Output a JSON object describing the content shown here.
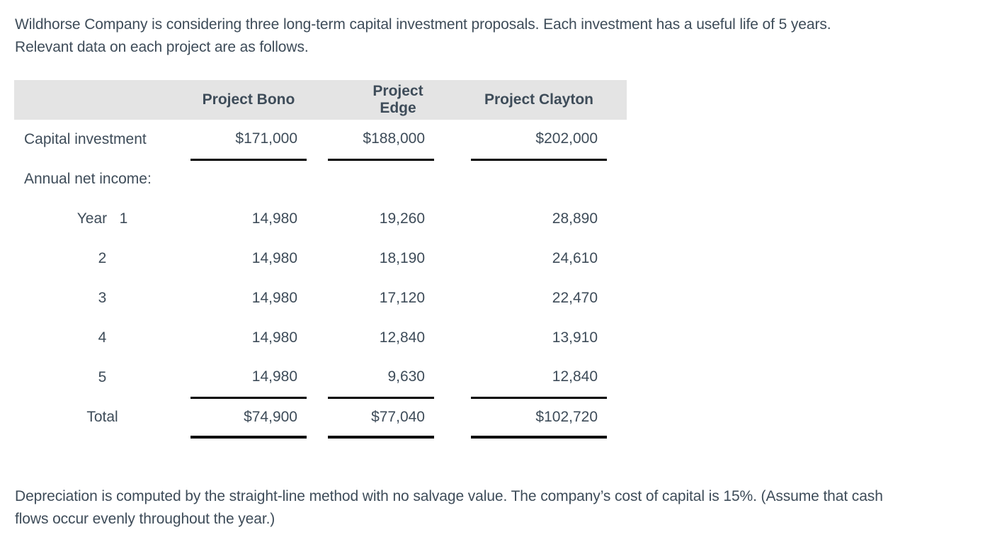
{
  "colors": {
    "text": "#3E4C59",
    "header_bg": "#E4E4E4",
    "rule": "#000000"
  },
  "intro": {
    "lines": [
      "Wildhorse Company is considering three long-term capital investment proposals. Each investment has a useful life of 5 years.",
      "Relevant data on each project are as follows."
    ]
  },
  "table": {
    "column_headers": [
      "Project Bono",
      "Project Edge",
      "Project Clayton"
    ],
    "capital_investment": {
      "label": "Capital investment",
      "values": [
        "$171,000",
        "$188,000",
        "$202,000"
      ]
    },
    "annual_net_income": {
      "label": "Annual net income:"
    },
    "years": [
      {
        "label": "Year   1",
        "values": [
          "14,980",
          "19,260",
          "28,890"
        ]
      },
      {
        "label": "2",
        "values": [
          "14,980",
          "18,190",
          "24,610"
        ]
      },
      {
        "label": "3",
        "values": [
          "14,980",
          "17,120",
          "22,470"
        ]
      },
      {
        "label": "4",
        "values": [
          "14,980",
          "12,840",
          "13,910"
        ]
      },
      {
        "label": "5",
        "values": [
          "14,980",
          "9,630",
          "12,840"
        ]
      }
    ],
    "total": {
      "label": "Total",
      "values": [
        "$74,900",
        "$77,040",
        "$102,720"
      ]
    }
  },
  "footer": {
    "lines": [
      "Depreciation is computed by the straight-line method with no salvage value. The company’s cost of capital is 15%. (Assume that cash",
      "flows occur evenly throughout the year.)"
    ]
  }
}
